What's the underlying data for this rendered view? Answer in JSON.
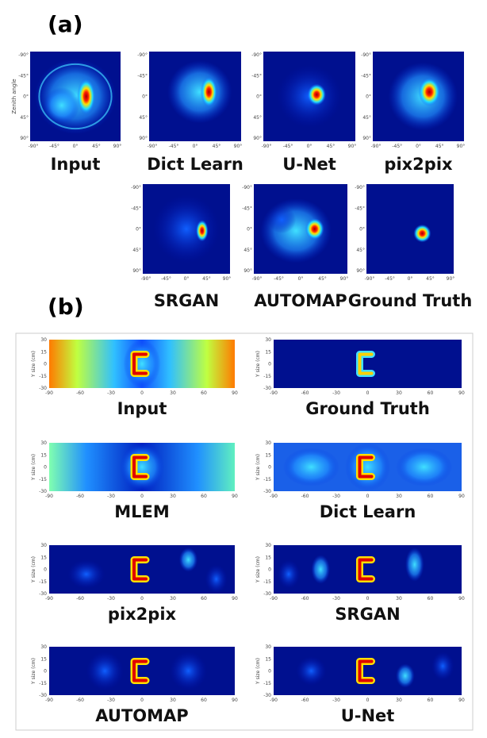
{
  "panel_a": {
    "label": "(a)",
    "y_axis_label": "Zenith angle",
    "ticks": [
      "-90°",
      "-45°",
      "0°",
      "45°",
      "90°"
    ],
    "captions": [
      "Input",
      "Dict Learn",
      "U-Net",
      "pix2pix",
      "SRGAN",
      "AUTOMAP",
      "Ground Truth"
    ]
  },
  "panel_b": {
    "label": "(b)",
    "y_axis_label": "Y size (cm)",
    "y_ticks": [
      "30",
      "15",
      "0",
      "-15",
      "-30"
    ],
    "x_ticks": [
      "-90",
      "-60",
      "-30",
      "0",
      "30",
      "60",
      "90"
    ],
    "captions": [
      "Input",
      "Ground Truth",
      "MLEM",
      "Dict Learn",
      "pix2pix",
      "SRGAN",
      "AUTOMAP",
      "U-Net"
    ]
  }
}
